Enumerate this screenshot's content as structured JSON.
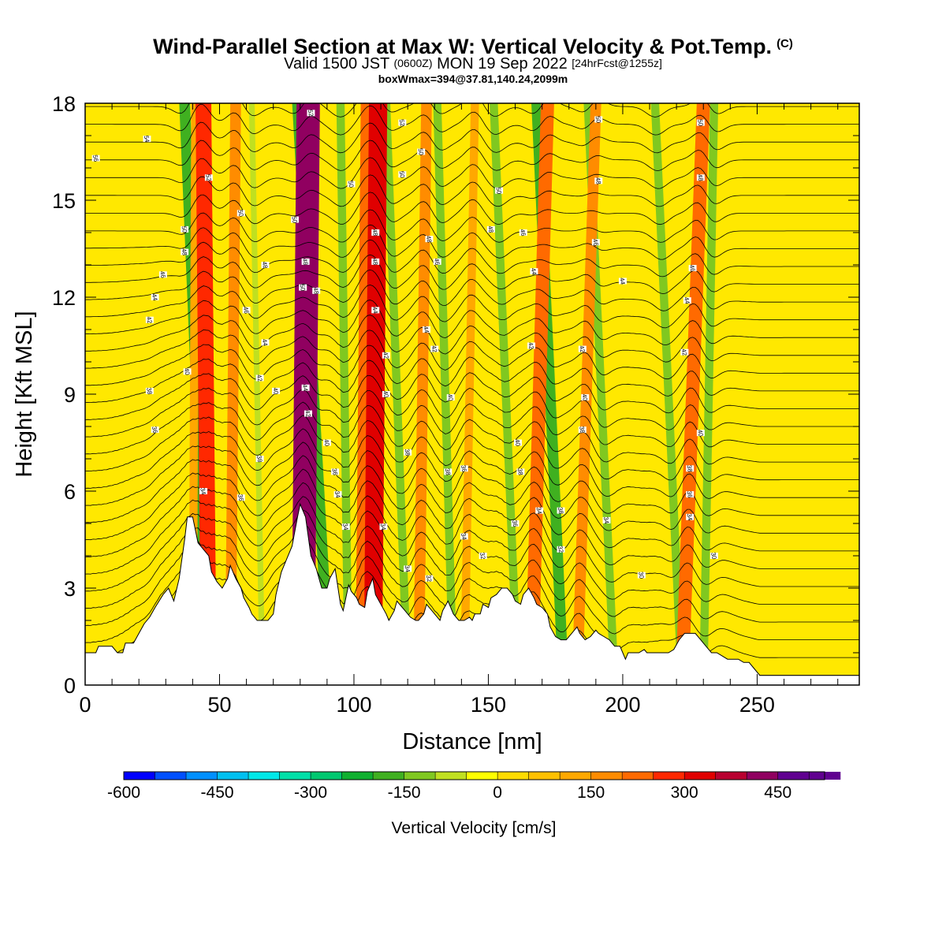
{
  "header": {
    "title": "Wind-Parallel Section at Max W: Vertical Velocity & Pot.Temp.",
    "title_mark": "(C)",
    "valid_prefix": "Valid 1500 JST",
    "valid_utc": "(0600Z)",
    "valid_date": "MON 19 Sep 2022",
    "forecast": "[24hrFcst@1255z]",
    "boxmax": "boxWmax=394@37.81,140.24,2099m"
  },
  "chart_data": {
    "type": "heatmap",
    "xlabel": "Distance [nm]",
    "ylabel": "Height [Kft MSL]",
    "xlim": [
      0,
      288
    ],
    "ylim": [
      0,
      18
    ],
    "x_ticks": [
      0,
      50,
      100,
      150,
      200,
      250
    ],
    "y_ticks": [
      0,
      3,
      6,
      9,
      12,
      15,
      18
    ],
    "colorbar": {
      "title": "Vertical Velocity [cm/s]",
      "range": [
        -600,
        525
      ],
      "step": 50,
      "tick_values": [
        -600,
        -450,
        -300,
        -150,
        0,
        150,
        300,
        450
      ],
      "tick_labels": [
        "-600",
        "-450",
        "-300",
        "-150",
        "0",
        "150",
        "300",
        "450"
      ],
      "colors": [
        "#0000ff",
        "#0050ff",
        "#0090ff",
        "#00c0f0",
        "#00e8e8",
        "#00e0a8",
        "#00c870",
        "#10b030",
        "#40b020",
        "#80c820",
        "#c0e020",
        "#ffff00",
        "#ffdc00",
        "#ffc000",
        "#ffa800",
        "#ff8c00",
        "#ff6a00",
        "#ff2800",
        "#e00000",
        "#b80030",
        "#900060",
        "#600090"
      ]
    },
    "terrain_kft": [
      [
        0,
        1.0
      ],
      [
        4,
        1.0
      ],
      [
        5,
        1.2
      ],
      [
        10,
        1.2
      ],
      [
        12,
        1.0
      ],
      [
        14,
        1.0
      ],
      [
        15,
        1.3
      ],
      [
        18,
        1.3
      ],
      [
        20,
        1.6
      ],
      [
        22,
        1.9
      ],
      [
        24,
        2.1
      ],
      [
        26,
        2.4
      ],
      [
        29,
        2.8
      ],
      [
        31,
        3.0
      ],
      [
        33,
        2.6
      ],
      [
        35,
        3.3
      ],
      [
        37,
        4.5
      ],
      [
        38,
        5.2
      ],
      [
        40,
        5.2
      ],
      [
        42,
        4.4
      ],
      [
        44,
        4.2
      ],
      [
        46,
        4.0
      ],
      [
        47,
        3.5
      ],
      [
        49,
        3.2
      ],
      [
        51,
        3.0
      ],
      [
        53,
        3.3
      ],
      [
        54,
        3.7
      ],
      [
        56,
        3.3
      ],
      [
        58,
        3.0
      ],
      [
        59,
        2.7
      ],
      [
        61,
        2.4
      ],
      [
        62,
        2.2
      ],
      [
        64,
        2.0
      ],
      [
        66,
        2.0
      ],
      [
        68,
        2.0
      ],
      [
        70,
        2.2
      ],
      [
        71,
        2.8
      ],
      [
        73,
        3.5
      ],
      [
        75,
        3.9
      ],
      [
        77,
        4.3
      ],
      [
        79,
        5.2
      ],
      [
        80,
        5.6
      ],
      [
        82,
        5.2
      ],
      [
        83,
        4.6
      ],
      [
        84,
        4.0
      ],
      [
        86,
        3.6
      ],
      [
        88,
        3.0
      ],
      [
        90,
        3.0
      ],
      [
        91,
        3.3
      ],
      [
        93,
        3.6
      ],
      [
        95,
        2.5
      ],
      [
        96,
        2.3
      ],
      [
        98,
        3.1
      ],
      [
        99,
        2.9
      ],
      [
        101,
        2.7
      ],
      [
        102,
        2.5
      ],
      [
        104,
        2.4
      ],
      [
        105,
        2.9
      ],
      [
        107,
        3.3
      ],
      [
        108,
        2.8
      ],
      [
        110,
        2.5
      ],
      [
        112,
        2.2
      ],
      [
        113,
        2.0
      ],
      [
        115,
        2.3
      ],
      [
        116,
        2.6
      ],
      [
        118,
        2.4
      ],
      [
        119,
        2.3
      ],
      [
        121,
        2.1
      ],
      [
        123,
        2.0
      ],
      [
        124,
        2.0
      ],
      [
        126,
        2.2
      ],
      [
        127,
        2.5
      ],
      [
        129,
        2.3
      ],
      [
        130,
        2.2
      ],
      [
        132,
        2.0
      ],
      [
        133,
        2.3
      ],
      [
        135,
        2.6
      ],
      [
        136,
        2.4
      ],
      [
        137,
        2.2
      ],
      [
        139,
        2.0
      ],
      [
        141,
        2.0
      ],
      [
        143,
        2.1
      ],
      [
        144,
        2.0
      ],
      [
        145,
        2.2
      ],
      [
        147,
        2.2
      ],
      [
        148,
        2.5
      ],
      [
        150,
        2.4
      ],
      [
        151,
        2.7
      ],
      [
        153,
        2.8
      ],
      [
        155,
        3.0
      ],
      [
        157,
        3.0
      ],
      [
        159,
        2.8
      ],
      [
        160,
        2.6
      ],
      [
        162,
        2.5
      ],
      [
        163,
        2.8
      ],
      [
        165,
        3.0
      ],
      [
        167,
        2.7
      ],
      [
        168,
        2.5
      ],
      [
        170,
        2.4
      ],
      [
        172,
        2.2
      ],
      [
        173,
        1.8
      ],
      [
        175,
        1.5
      ],
      [
        177,
        1.4
      ],
      [
        179,
        1.4
      ],
      [
        181,
        1.6
      ],
      [
        183,
        1.8
      ],
      [
        184,
        1.6
      ],
      [
        186,
        1.4
      ],
      [
        188,
        1.5
      ],
      [
        190,
        1.7
      ],
      [
        191,
        1.6
      ],
      [
        193,
        1.5
      ],
      [
        195,
        1.4
      ],
      [
        197,
        1.2
      ],
      [
        199,
        1.2
      ],
      [
        201,
        0.8
      ],
      [
        202,
        1.0
      ],
      [
        204,
        1.0
      ],
      [
        206,
        1.0
      ],
      [
        208,
        1.1
      ],
      [
        209,
        1.0
      ],
      [
        211,
        1.0
      ],
      [
        213,
        1.0
      ],
      [
        215,
        1.0
      ],
      [
        217,
        1.0
      ],
      [
        219,
        1.1
      ],
      [
        221,
        1.4
      ],
      [
        223,
        1.6
      ],
      [
        225,
        1.6
      ],
      [
        227,
        1.6
      ],
      [
        229,
        1.4
      ],
      [
        231,
        1.2
      ],
      [
        233,
        1.0
      ],
      [
        235,
        1.0
      ],
      [
        237,
        0.9
      ],
      [
        239,
        0.8
      ],
      [
        241,
        0.8
      ],
      [
        243,
        0.8
      ],
      [
        245,
        0.7
      ],
      [
        247,
        0.7
      ],
      [
        249,
        0.5
      ],
      [
        251,
        0.3
      ],
      [
        253,
        0.3
      ],
      [
        288,
        0.3
      ]
    ],
    "updraft_bands": [
      {
        "top_x": 41,
        "bottom_x": 40,
        "level": 2
      },
      {
        "top_x": 44,
        "bottom_x": 46,
        "level": 5
      },
      {
        "top_x": 56,
        "bottom_x": 54,
        "level": 3
      },
      {
        "top_x": 83,
        "bottom_x": 81,
        "level": 8
      },
      {
        "top_x": 105,
        "bottom_x": 103,
        "level": 4
      },
      {
        "top_x": 109,
        "bottom_x": 107,
        "level": 6
      },
      {
        "top_x": 127,
        "bottom_x": 124,
        "level": 3
      },
      {
        "top_x": 145,
        "bottom_x": 141,
        "level": 2
      },
      {
        "top_x": 172,
        "bottom_x": 166,
        "level": 4
      },
      {
        "top_x": 190,
        "bottom_x": 183,
        "level": 3
      },
      {
        "top_x": 230,
        "bottom_x": 222,
        "level": 4
      }
    ],
    "downdraft_bands": [
      {
        "top_x": 37,
        "bottom_x": 46,
        "level": 3
      },
      {
        "top_x": 62,
        "bottom_x": 66,
        "level": 1
      },
      {
        "top_x": 79,
        "bottom_x": 91,
        "level": 3
      },
      {
        "top_x": 95,
        "bottom_x": 98,
        "level": 2
      },
      {
        "top_x": 112,
        "bottom_x": 120,
        "level": 2
      },
      {
        "top_x": 131,
        "bottom_x": 137,
        "level": 2
      },
      {
        "top_x": 152,
        "bottom_x": 161,
        "level": 2
      },
      {
        "top_x": 168,
        "bottom_x": 178,
        "level": 3
      },
      {
        "top_x": 187,
        "bottom_x": 197,
        "level": 2
      },
      {
        "top_x": 212,
        "bottom_x": 222,
        "level": 2
      },
      {
        "top_x": 234,
        "bottom_x": 230,
        "level": 2
      }
    ],
    "theta_contour_labels": [
      {
        "x": 4,
        "y": 16.3,
        "text": "56"
      },
      {
        "x": 23,
        "y": 16.9,
        "text": "54"
      },
      {
        "x": 46,
        "y": 15.7,
        "text": "52"
      },
      {
        "x": 37,
        "y": 14.1,
        "text": "50"
      },
      {
        "x": 37,
        "y": 13.4,
        "text": "48"
      },
      {
        "x": 29,
        "y": 12.7,
        "text": "46"
      },
      {
        "x": 26,
        "y": 12.0,
        "text": "44"
      },
      {
        "x": 24,
        "y": 11.3,
        "text": "42"
      },
      {
        "x": 38,
        "y": 9.7,
        "text": "40"
      },
      {
        "x": 24,
        "y": 9.1,
        "text": "38"
      },
      {
        "x": 26,
        "y": 7.9,
        "text": "36"
      },
      {
        "x": 44,
        "y": 6.0,
        "text": "34"
      },
      {
        "x": 58,
        "y": 14.6,
        "text": "50"
      },
      {
        "x": 67,
        "y": 13.0,
        "text": "48"
      },
      {
        "x": 60,
        "y": 11.6,
        "text": "46"
      },
      {
        "x": 67,
        "y": 10.6,
        "text": "44"
      },
      {
        "x": 65,
        "y": 9.5,
        "text": "42"
      },
      {
        "x": 71,
        "y": 9.1,
        "text": "40"
      },
      {
        "x": 65,
        "y": 7.0,
        "text": "38"
      },
      {
        "x": 58,
        "y": 5.8,
        "text": "36"
      },
      {
        "x": 84,
        "y": 17.7,
        "text": "52"
      },
      {
        "x": 78,
        "y": 14.4,
        "text": "50"
      },
      {
        "x": 82,
        "y": 13.1,
        "text": "48"
      },
      {
        "x": 81,
        "y": 12.3,
        "text": "50"
      },
      {
        "x": 86,
        "y": 12.2,
        "text": "48"
      },
      {
        "x": 82,
        "y": 9.2,
        "text": "44"
      },
      {
        "x": 83,
        "y": 8.4,
        "text": "42"
      },
      {
        "x": 90,
        "y": 7.5,
        "text": "40"
      },
      {
        "x": 93,
        "y": 6.6,
        "text": "36"
      },
      {
        "x": 94,
        "y": 5.9,
        "text": "34"
      },
      {
        "x": 97,
        "y": 4.9,
        "text": "34"
      },
      {
        "x": 99,
        "y": 15.5,
        "text": "50"
      },
      {
        "x": 108,
        "y": 14.0,
        "text": "48"
      },
      {
        "x": 108,
        "y": 13.1,
        "text": "48"
      },
      {
        "x": 108,
        "y": 11.6,
        "text": "44"
      },
      {
        "x": 112,
        "y": 10.2,
        "text": "42"
      },
      {
        "x": 112,
        "y": 9.0,
        "text": "40"
      },
      {
        "x": 111,
        "y": 4.9,
        "text": "34"
      },
      {
        "x": 118,
        "y": 17.4,
        "text": "52"
      },
      {
        "x": 118,
        "y": 15.8,
        "text": "50"
      },
      {
        "x": 125,
        "y": 16.5,
        "text": "50"
      },
      {
        "x": 128,
        "y": 13.8,
        "text": "48"
      },
      {
        "x": 131,
        "y": 13.1,
        "text": "46"
      },
      {
        "x": 127,
        "y": 11.0,
        "text": "44"
      },
      {
        "x": 130,
        "y": 10.4,
        "text": "42"
      },
      {
        "x": 136,
        "y": 8.9,
        "text": "40"
      },
      {
        "x": 120,
        "y": 7.2,
        "text": "38"
      },
      {
        "x": 135,
        "y": 6.6,
        "text": "38"
      },
      {
        "x": 141,
        "y": 6.7,
        "text": "36"
      },
      {
        "x": 120,
        "y": 3.6,
        "text": "34"
      },
      {
        "x": 128,
        "y": 3.3,
        "text": "32"
      },
      {
        "x": 141,
        "y": 4.6,
        "text": "34"
      },
      {
        "x": 148,
        "y": 4.0,
        "text": "32"
      },
      {
        "x": 154,
        "y": 15.3,
        "text": "50"
      },
      {
        "x": 151,
        "y": 14.1,
        "text": "48"
      },
      {
        "x": 163,
        "y": 14.0,
        "text": "46"
      },
      {
        "x": 167,
        "y": 12.8,
        "text": "44"
      },
      {
        "x": 166,
        "y": 10.5,
        "text": "42"
      },
      {
        "x": 161,
        "y": 7.5,
        "text": "40"
      },
      {
        "x": 162,
        "y": 6.6,
        "text": "38"
      },
      {
        "x": 160,
        "y": 5.0,
        "text": "36"
      },
      {
        "x": 169,
        "y": 5.4,
        "text": "34"
      },
      {
        "x": 177,
        "y": 5.4,
        "text": "38"
      },
      {
        "x": 177,
        "y": 4.2,
        "text": "32"
      },
      {
        "x": 191,
        "y": 17.5,
        "text": "50"
      },
      {
        "x": 191,
        "y": 15.6,
        "text": "48"
      },
      {
        "x": 190,
        "y": 13.7,
        "text": "46"
      },
      {
        "x": 200,
        "y": 12.5,
        "text": "44"
      },
      {
        "x": 185,
        "y": 10.4,
        "text": "42"
      },
      {
        "x": 186,
        "y": 8.9,
        "text": "40"
      },
      {
        "x": 185,
        "y": 7.9,
        "text": "38"
      },
      {
        "x": 194,
        "y": 5.1,
        "text": "34"
      },
      {
        "x": 207,
        "y": 3.4,
        "text": "30"
      },
      {
        "x": 229,
        "y": 17.4,
        "text": "50"
      },
      {
        "x": 229,
        "y": 15.7,
        "text": "48"
      },
      {
        "x": 226,
        "y": 12.9,
        "text": "46"
      },
      {
        "x": 224,
        "y": 11.9,
        "text": "44"
      },
      {
        "x": 223,
        "y": 10.3,
        "text": "42"
      },
      {
        "x": 229,
        "y": 7.8,
        "text": "40"
      },
      {
        "x": 225,
        "y": 6.7,
        "text": "38"
      },
      {
        "x": 225,
        "y": 5.9,
        "text": "36"
      },
      {
        "x": 225,
        "y": 5.2,
        "text": "34"
      },
      {
        "x": 234,
        "y": 4.0,
        "text": "30"
      }
    ]
  }
}
